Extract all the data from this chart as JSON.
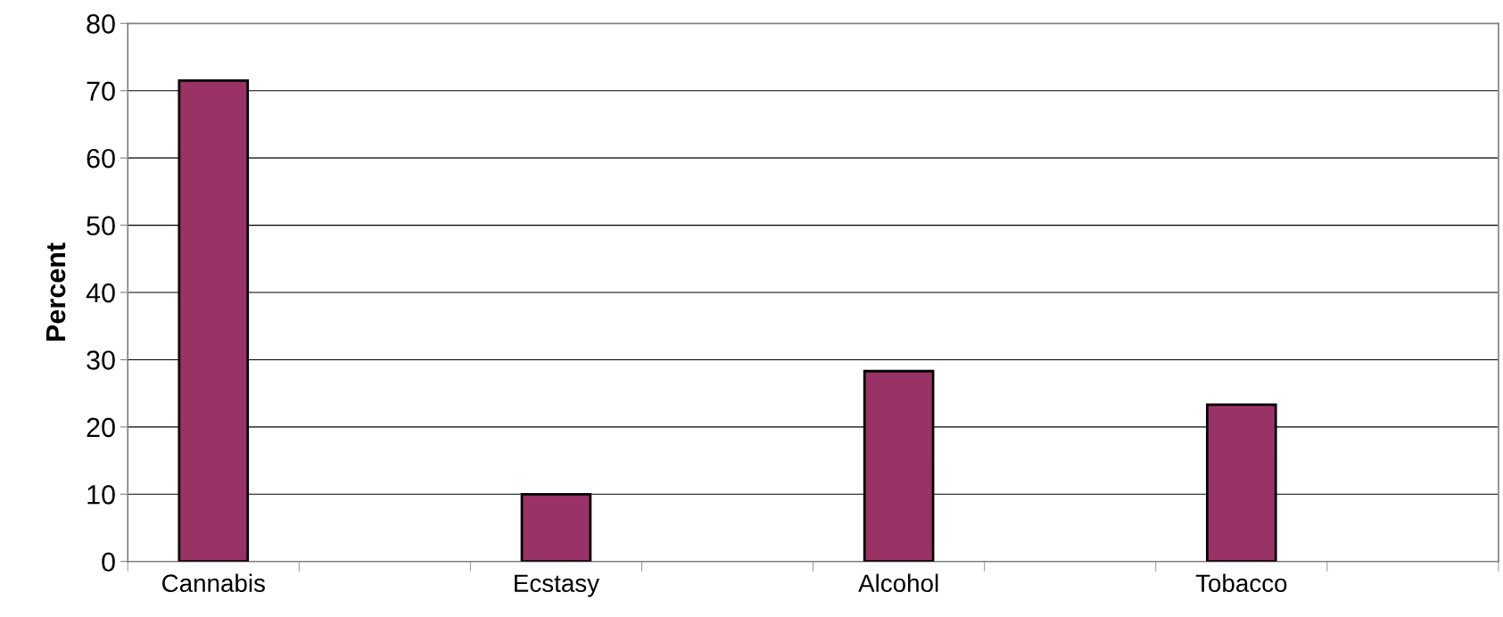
{
  "chart_data": {
    "type": "bar",
    "ylabel": "Percent",
    "categories": [
      "Cannabis",
      null,
      "Ecstasy",
      null,
      "Alcohol",
      null,
      "Tobacco",
      null
    ],
    "values": [
      71.5,
      null,
      10,
      null,
      28.3,
      null,
      23.3,
      null
    ],
    "color": "#993366",
    "ylim": [
      0,
      80
    ],
    "yticks": [
      0,
      10,
      20,
      30,
      40,
      50,
      60,
      70,
      80
    ],
    "grid": "y",
    "legend": false
  }
}
